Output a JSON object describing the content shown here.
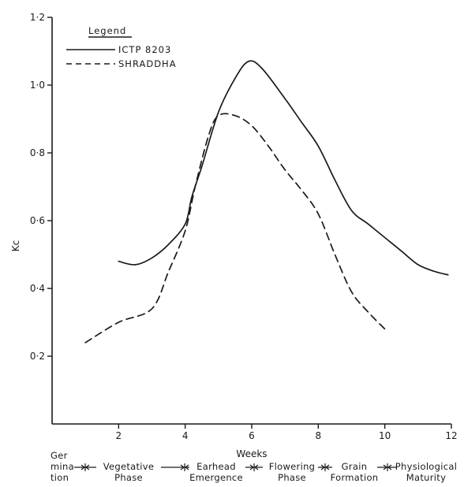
{
  "chart_data": {
    "type": "line",
    "xlabel": "Weeks",
    "ylabel": "Kc",
    "xlim": [
      0,
      12
    ],
    "ylim": [
      0,
      1.2
    ],
    "x_ticks": [
      2,
      4,
      6,
      8,
      10,
      12
    ],
    "x_tick_labels": [
      "2",
      "4",
      "6",
      "8",
      "10",
      "12"
    ],
    "y_ticks": [
      0.2,
      0.4,
      0.6,
      0.8,
      1.0,
      1.2
    ],
    "y_tick_labels": [
      "0·2",
      "0·4",
      "0·6",
      "0·8",
      "1·0",
      "1·2"
    ],
    "grid": false,
    "legend": {
      "title": "Legend",
      "placement": "top-left"
    },
    "series": [
      {
        "name": "ICTP 8203",
        "style": "solid",
        "x": [
          2.0,
          2.5,
          3.0,
          3.5,
          4.0,
          4.2,
          4.5,
          5.0,
          5.5,
          5.9,
          6.3,
          7.0,
          7.5,
          8.0,
          8.5,
          9.0,
          9.5,
          10.0,
          10.5,
          11.0,
          11.5,
          11.9
        ],
        "y": [
          0.48,
          0.47,
          0.49,
          0.53,
          0.59,
          0.67,
          0.76,
          0.92,
          1.02,
          1.07,
          1.05,
          0.96,
          0.89,
          0.82,
          0.72,
          0.63,
          0.59,
          0.55,
          0.51,
          0.47,
          0.45,
          0.44
        ]
      },
      {
        "name": "SHRADDHA",
        "style": "dashed",
        "x": [
          1.0,
          2.0,
          3.0,
          3.5,
          4.0,
          4.3,
          4.7,
          5.0,
          5.5,
          6.0,
          6.5,
          7.0,
          7.5,
          8.0,
          8.5,
          9.0,
          9.5,
          10.0
        ],
        "y": [
          0.24,
          0.3,
          0.34,
          0.45,
          0.57,
          0.7,
          0.85,
          0.91,
          0.91,
          0.88,
          0.82,
          0.75,
          0.69,
          0.62,
          0.5,
          0.39,
          0.33,
          0.28
        ]
      }
    ]
  },
  "phases": {
    "germination": [
      "Ger",
      "mina",
      "tion"
    ],
    "vegetative": [
      "Vegetative",
      "Phase"
    ],
    "earhead": [
      "Earhead",
      "Emergence"
    ],
    "flowering": [
      "Flowering",
      "Phase"
    ],
    "grain": [
      "Grain",
      "Formation"
    ],
    "physiological": [
      "Physiological",
      "Maturity"
    ]
  },
  "colors": {
    "ink": "#1a1a1a",
    "background": "#ffffff"
  }
}
